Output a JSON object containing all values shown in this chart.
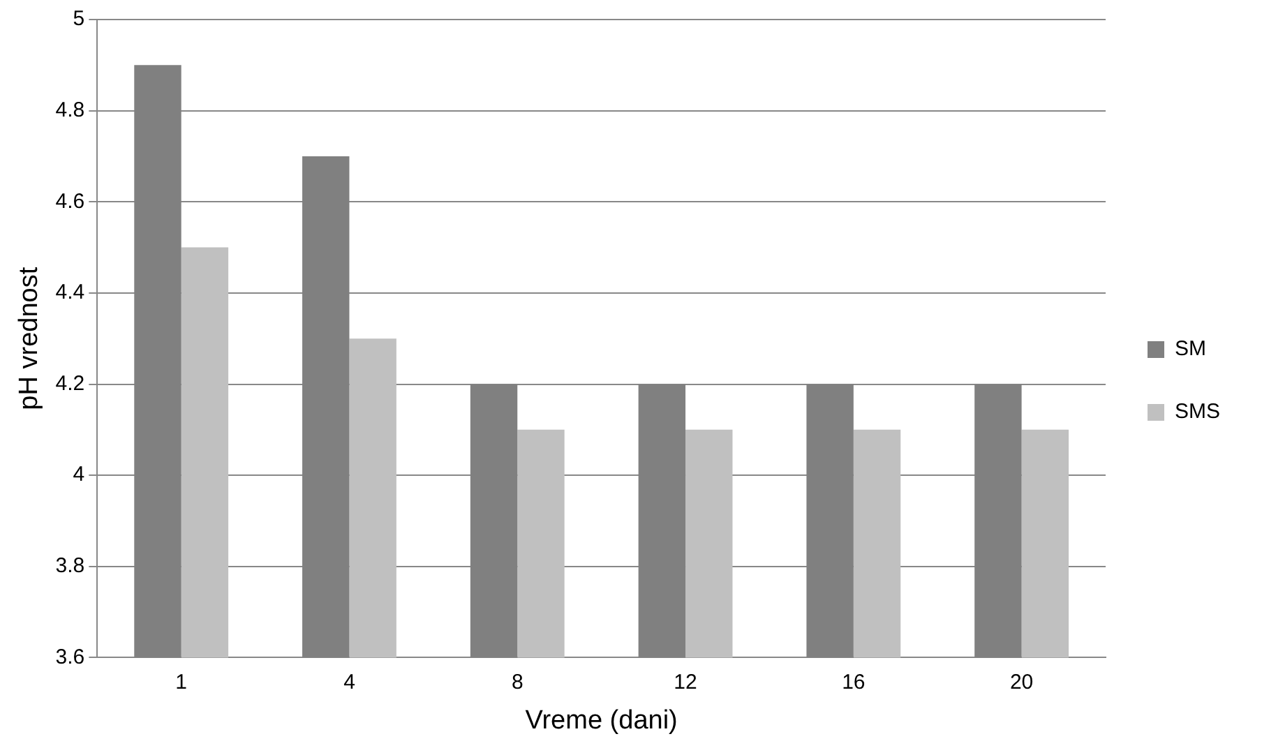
{
  "chart_data": {
    "type": "bar",
    "xlabel": "Vreme (dani)",
    "ylabel": "pH vrednost",
    "categories": [
      "1",
      "4",
      "8",
      "12",
      "16",
      "20"
    ],
    "series": [
      {
        "name": "SM",
        "color": "#808080",
        "values": [
          4.9,
          4.7,
          4.2,
          4.2,
          4.2,
          4.2
        ]
      },
      {
        "name": "SMS",
        "color": "#c0c0c0",
        "values": [
          4.5,
          4.3,
          4.1,
          4.1,
          4.1,
          4.1
        ]
      }
    ],
    "ylim": [
      3.6,
      5
    ],
    "yticks": [
      3.6,
      3.8,
      4,
      4.2,
      4.4,
      4.6,
      4.8,
      5
    ],
    "grid": "y",
    "legend": "right"
  }
}
